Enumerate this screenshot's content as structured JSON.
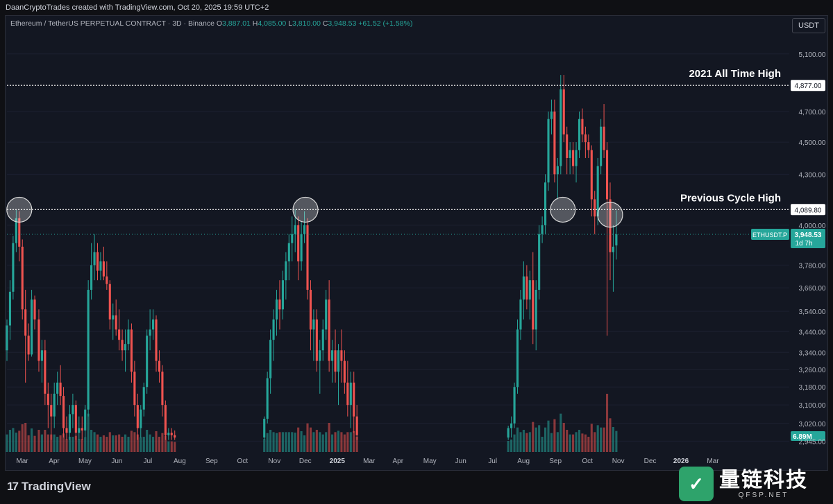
{
  "header": {
    "credit": "DaanCryptoTrades created with TradingView.com, Oct 20, 2025 19:59 UTC+2"
  },
  "legend": {
    "symbol": "Ethereum / TetherUS PERPETUAL CONTRACT · 3D · Binance",
    "o_label": "O",
    "o_value": "3,887.01",
    "h_label": "H",
    "h_value": "4,085.00",
    "l_label": "L",
    "l_value": "3,810.00",
    "c_label": "C",
    "c_value": "3,948.53",
    "change": "+61.52 (+1.58%)"
  },
  "currency_button": "USDT",
  "footer": {
    "brand": "TradingView",
    "watermark_cn": "量链科技",
    "watermark_en": "QFSP.NET"
  },
  "colors": {
    "up": "#26a69a",
    "down": "#ef5350",
    "background": "#131722",
    "text": "#b2b5be"
  },
  "chart_data": {
    "type": "candlestick",
    "title": "Ethereum / TetherUS PERPETUAL CONTRACT · 3D · Binance",
    "timeframe": "3D",
    "yaxis": {
      "ticks": [
        5100,
        4700,
        4500,
        4300,
        4000,
        3780,
        3660,
        3540,
        3440,
        3340,
        3260,
        3180,
        3100,
        3020,
        2945
      ],
      "tick_labels": [
        "5,100.00",
        "4,700.00",
        "4,500.00",
        "4,300.00",
        "4,000.00",
        "3,780.00",
        "3,660.00",
        "3,540.00",
        "3,440.00",
        "3,340.00",
        "3,260.00",
        "3,180.00",
        "3,100.00",
        "3,020.00",
        "2,945.00"
      ],
      "scale": "log",
      "range": [
        2900,
        5200
      ]
    },
    "xaxis": {
      "tick_labels": [
        "Mar",
        "Apr",
        "May",
        "Jun",
        "Jul",
        "Aug",
        "Sep",
        "Oct",
        "Nov",
        "Dec",
        "2025",
        "Mar",
        "Apr",
        "May",
        "Jun",
        "Jul",
        "Aug",
        "Sep",
        "Oct",
        "Nov",
        "Dec",
        "2026",
        "Mar"
      ],
      "range": [
        "2024-03-01",
        "2026-03-31"
      ]
    },
    "horizontal_lines": [
      {
        "label": "2021 All Time High",
        "value": 4877,
        "value_label": "4,877.00"
      },
      {
        "label": "Previous Cycle High",
        "value": 4089.8,
        "value_label": "4,089.80"
      }
    ],
    "last_price": {
      "symbol": "ETHUSDT.P",
      "value": 3948.53,
      "value_label": "3,948.53",
      "countdown": "1d 7h"
    },
    "volume_label": "6.89M",
    "highlight_circles": [
      {
        "date": "2024-03-13",
        "price": 4089
      },
      {
        "date": "2024-12-16",
        "price": 4089
      },
      {
        "date": "2025-08-23",
        "price": 4089
      },
      {
        "date": "2025-10-08",
        "price": 4060
      }
    ],
    "candles": [
      [
        "2024-03-01",
        3350,
        3500,
        3300,
        3470
      ],
      [
        "2024-03-04",
        3470,
        3700,
        3400,
        3640
      ],
      [
        "2024-03-07",
        3640,
        3940,
        3600,
        3900
      ],
      [
        "2024-03-10",
        3900,
        4090,
        3850,
        4040
      ],
      [
        "2024-03-13",
        4040,
        4080,
        3800,
        3880
      ],
      [
        "2024-03-16",
        3880,
        3920,
        3500,
        3550
      ],
      [
        "2024-03-19",
        3550,
        3650,
        3200,
        3420
      ],
      [
        "2024-03-22",
        3420,
        3480,
        3300,
        3330
      ],
      [
        "2024-03-25",
        3330,
        3650,
        3320,
        3600
      ],
      [
        "2024-03-28",
        3600,
        3620,
        3450,
        3500
      ],
      [
        "2024-04-01",
        3500,
        3550,
        3250,
        3300
      ],
      [
        "2024-04-04",
        3300,
        3400,
        3200,
        3350
      ],
      [
        "2024-04-07",
        3350,
        3400,
        3100,
        3150
      ],
      [
        "2024-04-10",
        3150,
        3200,
        3000,
        3100
      ],
      [
        "2024-04-13",
        3100,
        3150,
        2950,
        3050
      ],
      [
        "2024-04-16",
        3050,
        3200,
        3000,
        3150
      ],
      [
        "2024-04-19",
        3150,
        3250,
        3100,
        3200
      ],
      [
        "2024-04-22",
        3200,
        3280,
        3100,
        3140
      ],
      [
        "2024-04-25",
        3140,
        3180,
        2960,
        3000
      ],
      [
        "2024-04-28",
        3000,
        3050,
        2950,
        2980
      ],
      [
        "2024-05-01",
        2980,
        3100,
        2950,
        3060
      ],
      [
        "2024-05-04",
        3060,
        3150,
        3000,
        3100
      ],
      [
        "2024-05-07",
        3100,
        3120,
        2950,
        2980
      ],
      [
        "2024-05-10",
        2980,
        3050,
        2950,
        3000
      ],
      [
        "2024-05-13",
        3000,
        3050,
        2950,
        2990
      ],
      [
        "2024-05-16",
        2990,
        3100,
        2960,
        3080
      ],
      [
        "2024-05-19",
        3080,
        3700,
        3050,
        3650
      ],
      [
        "2024-05-22",
        3650,
        3900,
        3600,
        3780
      ],
      [
        "2024-05-25",
        3780,
        3950,
        3700,
        3850
      ],
      [
        "2024-05-28",
        3850,
        3900,
        3700,
        3750
      ],
      [
        "2024-05-31",
        3750,
        3850,
        3700,
        3800
      ],
      [
        "2024-06-03",
        3800,
        3880,
        3700,
        3720
      ],
      [
        "2024-06-06",
        3720,
        3800,
        3650,
        3680
      ],
      [
        "2024-06-09",
        3680,
        3700,
        3450,
        3500
      ],
      [
        "2024-06-12",
        3500,
        3580,
        3400,
        3520
      ],
      [
        "2024-06-15",
        3520,
        3600,
        3420,
        3450
      ],
      [
        "2024-06-18",
        3450,
        3550,
        3350,
        3400
      ],
      [
        "2024-06-21",
        3400,
        3450,
        3300,
        3350
      ],
      [
        "2024-06-24",
        3350,
        3450,
        3250,
        3380
      ],
      [
        "2024-06-27",
        3380,
        3500,
        3350,
        3450
      ],
      [
        "2024-06-30",
        3450,
        3480,
        3200,
        3250
      ],
      [
        "2024-07-03",
        3250,
        3300,
        3050,
        3100
      ],
      [
        "2024-07-06",
        3100,
        3150,
        2950,
        3000
      ],
      [
        "2024-07-09",
        3000,
        3100,
        2960,
        3080
      ],
      [
        "2024-07-12",
        3080,
        3200,
        3050,
        3180
      ],
      [
        "2024-07-15",
        3180,
        3450,
        3150,
        3420
      ],
      [
        "2024-07-18",
        3420,
        3550,
        3350,
        3450
      ],
      [
        "2024-07-21",
        3450,
        3550,
        3400,
        3500
      ],
      [
        "2024-07-24",
        3500,
        3520,
        3250,
        3300
      ],
      [
        "2024-07-27",
        3300,
        3350,
        3200,
        3250
      ],
      [
        "2024-07-30",
        3250,
        3280,
        3050,
        3100
      ],
      [
        "2024-08-02",
        3100,
        3120,
        2950,
        2970
      ],
      [
        "2024-08-05",
        2970,
        3000,
        2950,
        2980
      ],
      [
        "2024-08-08",
        2980,
        3000,
        2950,
        2970
      ],
      [
        "2024-08-11",
        2970,
        2990,
        2950,
        2960
      ]
    ],
    "candles_note": "",
    "candles_2": [
      [
        "2024-11-06",
        2960,
        3050,
        2950,
        3040
      ],
      [
        "2024-11-09",
        3040,
        3250,
        3020,
        3220
      ],
      [
        "2024-11-12",
        3220,
        3450,
        3150,
        3400
      ],
      [
        "2024-11-15",
        3400,
        3550,
        3300,
        3500
      ],
      [
        "2024-11-18",
        3500,
        3650,
        3420,
        3600
      ],
      [
        "2024-11-21",
        3600,
        3700,
        3450,
        3550
      ],
      [
        "2024-11-24",
        3550,
        3750,
        3500,
        3700
      ],
      [
        "2024-11-27",
        3700,
        3850,
        3600,
        3800
      ],
      [
        "2024-11-30",
        3800,
        3950,
        3700,
        3900
      ],
      [
        "2024-12-03",
        3900,
        4050,
        3800,
        3950
      ],
      [
        "2024-12-06",
        3950,
        4090,
        3850,
        4000
      ],
      [
        "2024-12-09",
        4000,
        4050,
        3700,
        3800
      ],
      [
        "2024-12-12",
        3800,
        4020,
        3750,
        3950
      ],
      [
        "2024-12-15",
        3950,
        4080,
        3900,
        4000
      ],
      [
        "2024-12-18",
        4000,
        4040,
        3600,
        3650
      ],
      [
        "2024-12-21",
        3650,
        3700,
        3350,
        3450
      ],
      [
        "2024-12-24",
        3450,
        3550,
        3300,
        3500
      ],
      [
        "2024-12-27",
        3500,
        3550,
        3250,
        3300
      ],
      [
        "2024-12-30",
        3300,
        3400,
        3150,
        3350
      ],
      [
        "2025-01-02",
        3350,
        3500,
        3300,
        3450
      ],
      [
        "2025-01-05",
        3450,
        3650,
        3400,
        3600
      ],
      [
        "2025-01-08",
        3600,
        3700,
        3250,
        3300
      ],
      [
        "2025-01-11",
        3300,
        3400,
        3200,
        3350
      ],
      [
        "2025-01-14",
        3350,
        3450,
        3200,
        3250
      ],
      [
        "2025-01-17",
        3250,
        3380,
        3100,
        3350
      ],
      [
        "2025-01-20",
        3350,
        3450,
        3200,
        3300
      ],
      [
        "2025-01-23",
        3300,
        3350,
        3150,
        3200
      ],
      [
        "2025-01-26",
        3200,
        3300,
        3050,
        3100
      ],
      [
        "2025-01-29",
        3100,
        3250,
        3000,
        3200
      ],
      [
        "2025-02-01",
        3200,
        3250,
        2980,
        3050
      ],
      [
        "2025-02-04",
        3050,
        3100,
        2950,
        2970
      ]
    ],
    "candles_3": [
      [
        "2025-07-01",
        2960,
        3010,
        2950,
        3000
      ],
      [
        "2025-07-04",
        3000,
        3050,
        2960,
        3020
      ],
      [
        "2025-07-07",
        3020,
        3200,
        3000,
        3180
      ],
      [
        "2025-07-10",
        3180,
        3500,
        3150,
        3450
      ],
      [
        "2025-07-13",
        3450,
        3650,
        3400,
        3600
      ],
      [
        "2025-07-16",
        3600,
        3800,
        3500,
        3720
      ],
      [
        "2025-07-19",
        3720,
        3780,
        3550,
        3600
      ],
      [
        "2025-07-22",
        3600,
        3750,
        3500,
        3700
      ],
      [
        "2025-07-25",
        3700,
        3850,
        3380,
        3450
      ],
      [
        "2025-07-28",
        3450,
        3700,
        3350,
        3650
      ],
      [
        "2025-07-31",
        3650,
        4000,
        3600,
        3950
      ],
      [
        "2025-08-03",
        3950,
        4050,
        3900,
        4000
      ],
      [
        "2025-08-06",
        4000,
        4300,
        3950,
        4250
      ],
      [
        "2025-08-09",
        4250,
        4700,
        4200,
        4650
      ],
      [
        "2025-08-12",
        4650,
        4780,
        4550,
        4700
      ],
      [
        "2025-08-15",
        4700,
        4780,
        4250,
        4300
      ],
      [
        "2025-08-18",
        4300,
        4400,
        4150,
        4350
      ],
      [
        "2025-08-21",
        4350,
        4950,
        4300,
        4850
      ],
      [
        "2025-08-24",
        4850,
        4950,
        4500,
        4550
      ],
      [
        "2025-08-27",
        4550,
        4600,
        4300,
        4400
      ],
      [
        "2025-08-30",
        4400,
        4500,
        4300,
        4450
      ],
      [
        "2025-09-02",
        4450,
        4500,
        4300,
        4350
      ],
      [
        "2025-09-05",
        4350,
        4500,
        4250,
        4450
      ],
      [
        "2025-09-08",
        4450,
        4700,
        4400,
        4650
      ],
      [
        "2025-09-11",
        4650,
        4720,
        4500,
        4550
      ],
      [
        "2025-09-14",
        4550,
        4600,
        4400,
        4500
      ],
      [
        "2025-09-17",
        4500,
        4550,
        4400,
        4450
      ],
      [
        "2025-09-20",
        4450,
        4480,
        4050,
        4150
      ],
      [
        "2025-09-23",
        4150,
        4200,
        3950,
        4050
      ],
      [
        "2025-09-26",
        4050,
        4400,
        4000,
        4350
      ],
      [
        "2025-09-29",
        4350,
        4650,
        4300,
        4600
      ],
      [
        "2025-10-02",
        4600,
        4750,
        4400,
        4450
      ],
      [
        "2025-10-05",
        4450,
        4500,
        3420,
        4150
      ],
      [
        "2025-10-08",
        4150,
        4250,
        3700,
        3850
      ],
      [
        "2025-10-11",
        3850,
        4000,
        3640,
        3880
      ],
      [
        "2025-10-14",
        3887.01,
        4085,
        3810,
        3948.53
      ]
    ],
    "volume": {
      "label": "Volume",
      "unit": "relative",
      "current": "6.89M"
    }
  }
}
